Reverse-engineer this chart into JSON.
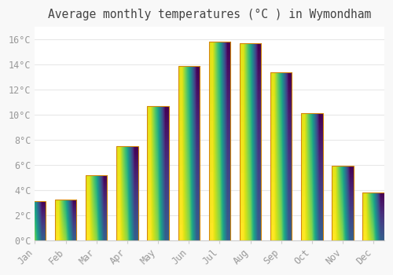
{
  "title": "Average monthly temperatures (°C ) in Wymondham",
  "months": [
    "Jan",
    "Feb",
    "Mar",
    "Apr",
    "May",
    "Jun",
    "Jul",
    "Aug",
    "Sep",
    "Oct",
    "Nov",
    "Dec"
  ],
  "temperatures": [
    3.1,
    3.2,
    5.2,
    7.5,
    10.7,
    13.9,
    15.8,
    15.7,
    13.4,
    10.1,
    5.9,
    3.8
  ],
  "bar_color_top": "#F5A623",
  "bar_color_bottom": "#FFD966",
  "bar_edge_color": "#D4870A",
  "background_color": "#F8F8F8",
  "plot_bg_color": "#FFFFFF",
  "grid_color": "#E8E8E8",
  "tick_label_color": "#999999",
  "title_color": "#444444",
  "ylim": [
    0,
    17
  ],
  "yticks": [
    0,
    2,
    4,
    6,
    8,
    10,
    12,
    14,
    16
  ],
  "title_fontsize": 10.5,
  "bar_width": 0.7
}
